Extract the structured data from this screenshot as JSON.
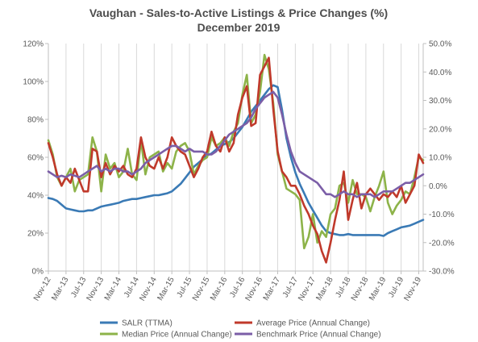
{
  "chart_data": {
    "type": "line",
    "title": "Vaughan - Sales-to-Active Listings & Price Changes (%)",
    "subtitle": "December 2019",
    "x": [
      "Nov-12",
      "Dec-12",
      "Jan-13",
      "Feb-13",
      "Mar-13",
      "Apr-13",
      "May-13",
      "Jun-13",
      "Jul-13",
      "Aug-13",
      "Sep-13",
      "Oct-13",
      "Nov-13",
      "Dec-13",
      "Jan-14",
      "Feb-14",
      "Mar-14",
      "Apr-14",
      "May-14",
      "Jun-14",
      "Jul-14",
      "Aug-14",
      "Sep-14",
      "Oct-14",
      "Nov-14",
      "Dec-14",
      "Jan-15",
      "Feb-15",
      "Mar-15",
      "Apr-15",
      "May-15",
      "Jun-15",
      "Jul-15",
      "Aug-15",
      "Sep-15",
      "Oct-15",
      "Nov-15",
      "Dec-15",
      "Jan-16",
      "Feb-16",
      "Mar-16",
      "Apr-16",
      "May-16",
      "Jun-16",
      "Jul-16",
      "Aug-16",
      "Sep-16",
      "Oct-16",
      "Nov-16",
      "Dec-16",
      "Jan-17",
      "Feb-17",
      "Mar-17",
      "Apr-17",
      "May-17",
      "Jun-17",
      "Jul-17",
      "Aug-17",
      "Sep-17",
      "Oct-17",
      "Nov-17",
      "Dec-17",
      "Jan-18",
      "Feb-18",
      "Mar-18",
      "Apr-18",
      "May-18",
      "Jun-18",
      "Jul-18",
      "Aug-18",
      "Sep-18",
      "Oct-18",
      "Nov-18",
      "Dec-18",
      "Jan-19",
      "Feb-19",
      "Mar-19",
      "Apr-19",
      "May-19",
      "Jun-19",
      "Jul-19",
      "Aug-19",
      "Sep-19",
      "Oct-19",
      "Nov-19",
      "Dec-19"
    ],
    "x_tick_labels": [
      "Nov-12",
      "Mar-13",
      "Jul-13",
      "Nov-13",
      "Mar-14",
      "Jul-14",
      "Nov-14",
      "Mar-15",
      "Jul-15",
      "Nov-15",
      "Mar-16",
      "Jul-16",
      "Nov-16",
      "Mar-17",
      "Jul-17",
      "Nov-17",
      "Mar-18",
      "Jul-18",
      "Nov-18",
      "Mar-19",
      "Jul-19",
      "Nov-19"
    ],
    "y_left_ticks": [
      "0%",
      "20%",
      "40%",
      "60%",
      "80%",
      "100%",
      "120%"
    ],
    "y_left_range": [
      0,
      120
    ],
    "y_right_ticks": [
      "-30.0%",
      "-20.0%",
      "-10.0%",
      "0.0%",
      "10.0%",
      "20.0%",
      "30.0%",
      "40.0%",
      "50.0%"
    ],
    "y_right_range": [
      -30,
      50
    ],
    "grid": "vertical",
    "legend_position": "bottom",
    "series": [
      {
        "name": "SALR (TTMA)",
        "axis": "left",
        "color": "#3a7ab5",
        "values": [
          38.5,
          38,
          37,
          35,
          33,
          32.5,
          32,
          31.5,
          31.5,
          32,
          32,
          33,
          34,
          34.5,
          35,
          35.5,
          36,
          37,
          37.5,
          38,
          38,
          38.5,
          39,
          39.5,
          40,
          40,
          40.5,
          41,
          42,
          44,
          46,
          49,
          52,
          55,
          57,
          59,
          61,
          62,
          64,
          66,
          67,
          68,
          70,
          73,
          76,
          80,
          84,
          87,
          90,
          93,
          96,
          98,
          97,
          85,
          70,
          60,
          52,
          46,
          41,
          36,
          32,
          28,
          24,
          21,
          20,
          19.5,
          19,
          19,
          19.5,
          19,
          19,
          19,
          19,
          19,
          19,
          19,
          18.5,
          20,
          21,
          22,
          23,
          23.5,
          24,
          25,
          26,
          27
        ]
      },
      {
        "name": "Average Price (Annual Change)",
        "axis": "right",
        "color": "#c0392b",
        "values": [
          15,
          10,
          4,
          0,
          3,
          1,
          6,
          2,
          -2,
          -2,
          13,
          12,
          3,
          8,
          4,
          7,
          5,
          7,
          4,
          3,
          6,
          17,
          10,
          7,
          6,
          10,
          6,
          10,
          17,
          14,
          12,
          11,
          7,
          3,
          6,
          10,
          12,
          19,
          14,
          12,
          17,
          12,
          15,
          25,
          31,
          35,
          21,
          22,
          39,
          42,
          45,
          27,
          12,
          5,
          3,
          0,
          0,
          -3,
          -7,
          -10,
          -14,
          -17,
          -23,
          -27,
          -20,
          -12,
          -5,
          5,
          -12,
          -5,
          1,
          -8,
          -3,
          -1,
          -3,
          -5,
          -3,
          -4,
          -2,
          -4,
          0,
          -6,
          -3,
          0,
          11,
          8
        ]
      },
      {
        "name": "Median Price (Annual Change)",
        "axis": "right",
        "color": "#8db349",
        "values": [
          16,
          11,
          3,
          0,
          3,
          6,
          -2,
          2,
          3,
          4,
          17,
          12,
          -2,
          11,
          6,
          8,
          3,
          5,
          13,
          4,
          2,
          16,
          4,
          10,
          11,
          12,
          5,
          8,
          6,
          12,
          14,
          15,
          12,
          4,
          7,
          9,
          10,
          17,
          14,
          15,
          17,
          14,
          19,
          22,
          32,
          39,
          22,
          25,
          33,
          46,
          41,
          29,
          11,
          5,
          -1,
          -2,
          -3,
          -5,
          -22,
          -18,
          -10,
          -20,
          -16,
          -18,
          -10,
          -8,
          0,
          1,
          -6,
          2,
          -3,
          -3,
          -4,
          -9,
          -4,
          0,
          5,
          -6,
          -10,
          -7,
          -5,
          -2,
          -3,
          3,
          10,
          9
        ]
      },
      {
        "name": "Benchmark Price (Annual Change)",
        "axis": "right",
        "color": "#7b5ea7",
        "values": [
          5,
          4,
          3,
          3.5,
          3,
          4,
          3.5,
          3,
          4,
          5,
          6,
          7,
          5,
          6,
          5,
          6,
          6,
          5,
          5,
          4,
          5,
          6,
          8,
          9,
          10,
          11,
          12,
          13,
          14,
          14,
          13,
          12,
          13,
          12,
          12,
          12,
          11,
          11,
          12,
          14,
          16,
          18,
          19,
          20,
          21,
          22,
          24,
          27,
          29,
          31,
          32,
          33,
          31,
          25,
          18,
          12,
          8,
          5,
          4,
          3,
          2,
          1,
          -1,
          -3,
          -3,
          -4,
          -3,
          -2,
          -3,
          -3,
          -4,
          -3,
          -3,
          -3,
          -4,
          -3,
          -2,
          -2,
          -2,
          -1,
          0,
          1,
          1,
          2,
          3,
          4
        ]
      }
    ]
  }
}
